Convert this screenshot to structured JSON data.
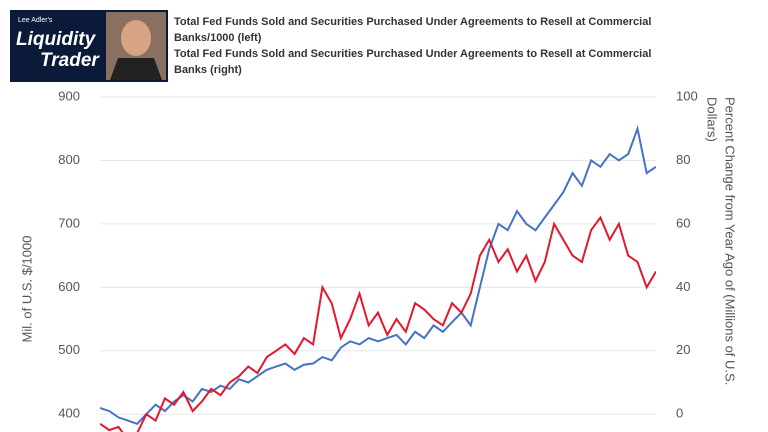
{
  "header": {
    "brand_small": "Lee Adler's",
    "brand_line1": "Liquidity",
    "brand_line2": "Trader"
  },
  "chart_data": {
    "type": "line",
    "ylabel": "Mil. of U.S. $/1000",
    "y2label": [
      "Percent Change from Year Ago of (Millions of U.S.",
      "Dollars)"
    ],
    "ylim": [
      372,
      900
    ],
    "yticks": [
      400,
      500,
      600,
      700,
      800,
      900
    ],
    "y2lim": [
      -5.6,
      100
    ],
    "y2ticks": [
      0,
      20,
      40,
      60,
      80,
      100
    ],
    "grid": true,
    "series": [
      {
        "name": "Total Fed Funds Sold and Securities Purchased Under Agreements to Resell at Commercial Banks/1000 (left)",
        "color": "#4572c4",
        "values": [
          410,
          405,
          395,
          390,
          385,
          400,
          415,
          405,
          420,
          430,
          420,
          440,
          435,
          445,
          440,
          455,
          450,
          460,
          470,
          475,
          480,
          470,
          478,
          480,
          490,
          485,
          505,
          515,
          510,
          520,
          515,
          520,
          525,
          510,
          530,
          520,
          540,
          530,
          545,
          560,
          540,
          600,
          660,
          700,
          690,
          720,
          700,
          690,
          710,
          730,
          750,
          780,
          760,
          800,
          790,
          810,
          800,
          810,
          850,
          780,
          790
        ]
      },
      {
        "name": "Total Fed Funds Sold and Securities Purchased Under Agreements to Resell at Commercial Banks (right)",
        "color": "#e3182d",
        "axis": "y2",
        "values": [
          -3,
          -5,
          -4,
          -8,
          -6,
          0,
          -2,
          5,
          3,
          7,
          1,
          4,
          8,
          6,
          10,
          12,
          15,
          13,
          18,
          20,
          22,
          19,
          24,
          22,
          40,
          35,
          24,
          30,
          38,
          28,
          32,
          25,
          30,
          26,
          35,
          33,
          30,
          28,
          35,
          32,
          38,
          50,
          55,
          48,
          52,
          45,
          50,
          42,
          48,
          60,
          55,
          50,
          48,
          58,
          62,
          55,
          60,
          50,
          48,
          40,
          45
        ]
      }
    ]
  }
}
